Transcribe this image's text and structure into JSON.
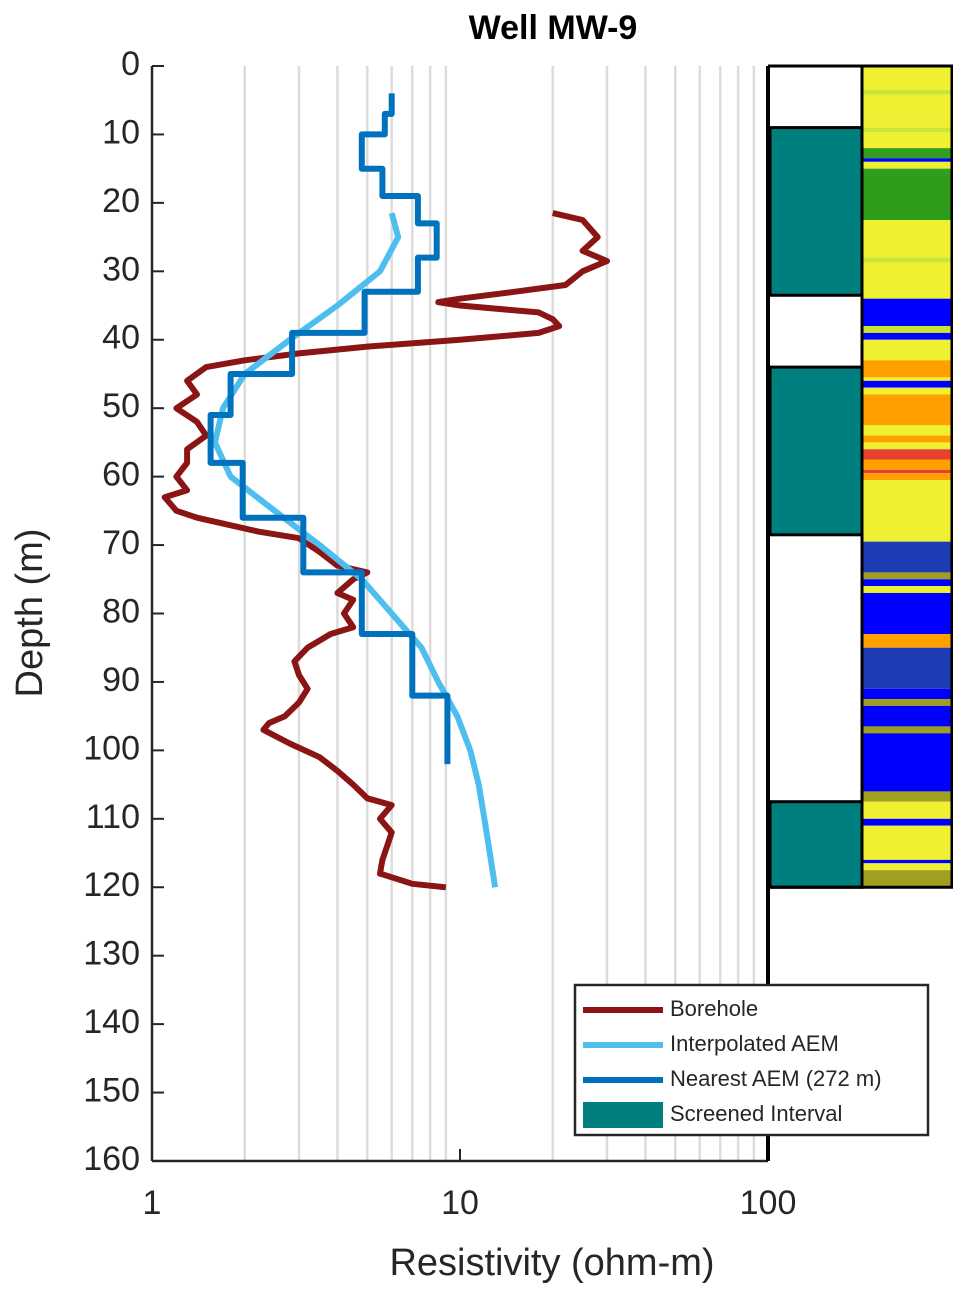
{
  "chart_data": {
    "type": "depth-log",
    "title": "Well MW-9",
    "xlabel": "Resistivity (ohm-m)",
    "ylabel": "Depth (m)",
    "xscale": "log",
    "xlim": [
      1,
      100
    ],
    "xticks": [
      1,
      10,
      100
    ],
    "xgrid": [
      2,
      3,
      4,
      5,
      6,
      7,
      8,
      9,
      20,
      30,
      40,
      50,
      60,
      70,
      80,
      90
    ],
    "ylim": [
      0,
      160
    ],
    "yticks": [
      0,
      10,
      20,
      30,
      40,
      50,
      60,
      70,
      80,
      90,
      100,
      110,
      120,
      130,
      140,
      150,
      160
    ],
    "legend": "lower right",
    "series": [
      {
        "name": "Borehole",
        "color": "#8b1414",
        "depth": [
          21.5,
          22.5,
          25,
          27,
          28.5,
          30,
          32,
          33,
          34,
          34.5,
          35,
          36,
          37,
          38,
          39,
          40,
          41,
          42,
          43,
          44,
          46,
          48,
          50,
          52,
          54,
          56,
          58,
          60,
          62,
          63,
          65,
          66,
          68,
          69,
          71,
          73,
          74,
          75,
          77,
          78,
          80,
          82,
          83,
          85,
          87,
          89,
          91,
          93,
          95,
          96,
          97,
          99,
          101,
          103,
          105,
          107,
          108,
          110,
          112,
          114,
          116,
          118,
          119.5,
          120
        ],
        "values": [
          20,
          25,
          28,
          25,
          30,
          25,
          22,
          15,
          10,
          8.5,
          10,
          18,
          20,
          21,
          18,
          10,
          5,
          3,
          2,
          1.5,
          1.3,
          1.4,
          1.2,
          1.4,
          1.5,
          1.3,
          1.3,
          1.2,
          1.3,
          1.1,
          1.2,
          1.4,
          2.2,
          3,
          3.5,
          4,
          5,
          4.5,
          4,
          4.5,
          4.2,
          4.5,
          3.8,
          3.2,
          2.9,
          3,
          3.2,
          3,
          2.7,
          2.4,
          2.3,
          2.8,
          3.5,
          4,
          4.5,
          5,
          6,
          5.5,
          6,
          5.8,
          5.6,
          5.5,
          7,
          9
        ]
      },
      {
        "name": "Interpolated AEM",
        "color": "#4dbeee",
        "depth": [
          21.5,
          25,
          30,
          35,
          40,
          45,
          50,
          55,
          60,
          65,
          70,
          75,
          80,
          85,
          90,
          95,
          100,
          105,
          110,
          115,
          120
        ],
        "values": [
          6,
          6.3,
          5.5,
          4,
          2.8,
          2,
          1.7,
          1.6,
          1.8,
          2.5,
          3.5,
          4.8,
          6,
          7.5,
          8.5,
          9.8,
          10.8,
          11.5,
          12,
          12.5,
          13
        ]
      },
      {
        "name": "Nearest AEM (272 m)",
        "color": "#0072bd",
        "depth": [
          4,
          7,
          7,
          10,
          10,
          15,
          15,
          19,
          19,
          23,
          23,
          28,
          28,
          33,
          33,
          39,
          39,
          45,
          45,
          51,
          51,
          58,
          58,
          66,
          66,
          74,
          74,
          83,
          83,
          92,
          92,
          102
        ],
        "values": [
          6,
          6,
          5.7,
          5.7,
          4.8,
          4.8,
          5.6,
          5.6,
          7.3,
          7.3,
          8.4,
          8.4,
          7.3,
          7.3,
          4.9,
          4.9,
          2.85,
          2.85,
          1.8,
          1.8,
          1.55,
          1.55,
          1.97,
          1.97,
          3.1,
          3.1,
          4.8,
          4.8,
          7,
          7,
          9.1,
          9.1
        ]
      }
    ],
    "screened": {
      "name": "Screened Interval",
      "color": "#007f7f",
      "top": [
        9,
        44,
        107.5
      ],
      "bottom": [
        33.5,
        68.5,
        120
      ]
    },
    "lithology": {
      "top": [
        0,
        3.5,
        4.2,
        9,
        9.7,
        12,
        13.5,
        14,
        15,
        16,
        22.5,
        28,
        28.7,
        34,
        38,
        39,
        40,
        43,
        45.5,
        46,
        47,
        48,
        52.5,
        54,
        55,
        56,
        57.5,
        59,
        59.5,
        60.5,
        69.5,
        74,
        75,
        76,
        77,
        83,
        85,
        91,
        92.5,
        93.5,
        96.5,
        97.5,
        106,
        107.5,
        110,
        111,
        112.5,
        116,
        116.5,
        117.5
      ],
      "bottom": [
        3.5,
        4.2,
        9,
        9.7,
        12,
        13.5,
        14,
        15,
        16,
        22.5,
        28,
        28.7,
        34,
        38,
        39,
        40,
        43,
        45.5,
        46,
        47,
        48,
        52.5,
        54,
        55,
        56,
        57.5,
        59,
        59.5,
        60.5,
        69.5,
        74,
        75,
        76,
        77,
        83,
        85,
        91,
        92.5,
        93.5,
        96.5,
        97.5,
        106,
        107.5,
        110,
        111,
        112.5,
        116,
        116.5,
        117.5,
        120
      ],
      "colors": [
        "#f0f032",
        "#c8e632",
        "#f0f032",
        "#c8e632",
        "#f0f032",
        "#32a01e",
        "#0000ff",
        "#f0f032",
        "#32a01e",
        "#2e9c18",
        "#f0f032",
        "#c8e632",
        "#f0f032",
        "#0000ff",
        "#c8e632",
        "#0000ff",
        "#f0f032",
        "#ffa000",
        "#f0f032",
        "#0000ff",
        "#f0f032",
        "#ffa000",
        "#f0f032",
        "#ffa000",
        "#f0f032",
        "#e84030",
        "#ffa000",
        "#e84030",
        "#ffa000",
        "#f0f032",
        "#1e3cb4",
        "#a0a020",
        "#0000ff",
        "#f0f032",
        "#0000ff",
        "#ffa000",
        "#1e3cb4",
        "#0000ff",
        "#a0a020",
        "#0000ff",
        "#a0a020",
        "#0000ff",
        "#a0a020",
        "#f0f032",
        "#0000ff",
        "#f0f032",
        "#f0f032",
        "#0000ff",
        "#f0f032",
        "#a0a020"
      ]
    }
  }
}
